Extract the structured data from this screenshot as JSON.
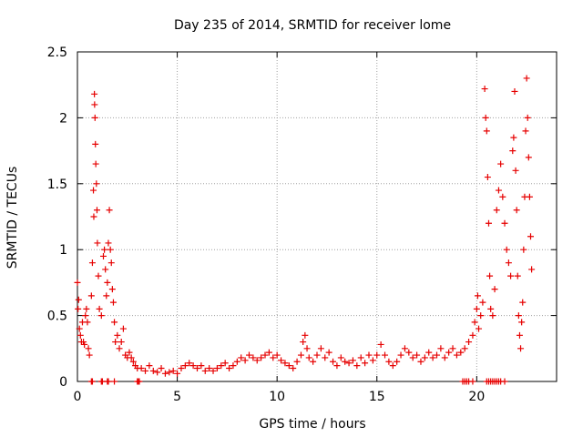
{
  "chart_data": {
    "type": "scatter",
    "title": "Day 235 of 2014, SRMTID for receiver lome",
    "xlabel": "GPS time / hours",
    "ylabel": "SRMTID / TECUs",
    "xlim": [
      0,
      24
    ],
    "ylim": [
      0,
      2.5
    ],
    "grid": true,
    "marker": "plus",
    "color": "#e60000",
    "x_ticks": [
      0,
      5,
      10,
      15,
      20
    ],
    "x_tick_labels": [
      "0",
      "5",
      "10",
      "15",
      "20"
    ],
    "y_ticks": [
      0,
      0.5,
      1,
      1.5,
      2,
      2.5
    ],
    "y_tick_labels": [
      "0",
      "0.5",
      "1",
      "1.5",
      "2",
      "2.5"
    ],
    "series": [
      {
        "name": "SRMTID",
        "points": [
          [
            0.0,
            0.75
          ],
          [
            0.03,
            0.55
          ],
          [
            0.06,
            0.62
          ],
          [
            0.1,
            0.4
          ],
          [
            0.15,
            0.35
          ],
          [
            0.2,
            0.3
          ],
          [
            0.25,
            0.45
          ],
          [
            0.3,
            0.3
          ],
          [
            0.35,
            0.28
          ],
          [
            0.4,
            0.5
          ],
          [
            0.45,
            0.55
          ],
          [
            0.5,
            0.45
          ],
          [
            0.55,
            0.25
          ],
          [
            0.6,
            0.2
          ],
          [
            0.7,
            0.65
          ],
          [
            0.75,
            0.9
          ],
          [
            0.8,
            1.45
          ],
          [
            0.82,
            1.25
          ],
          [
            0.85,
            2.18
          ],
          [
            0.86,
            2.1
          ],
          [
            0.88,
            2.0
          ],
          [
            0.9,
            1.8
          ],
          [
            0.92,
            1.65
          ],
          [
            0.95,
            1.5
          ],
          [
            0.98,
            1.3
          ],
          [
            1.0,
            1.05
          ],
          [
            1.05,
            0.8
          ],
          [
            1.1,
            0.55
          ],
          [
            1.2,
            0.5
          ],
          [
            1.3,
            0.95
          ],
          [
            1.35,
            1.0
          ],
          [
            1.4,
            0.85
          ],
          [
            1.45,
            0.65
          ],
          [
            1.5,
            0.75
          ],
          [
            1.55,
            1.05
          ],
          [
            1.6,
            1.3
          ],
          [
            1.65,
            1.0
          ],
          [
            1.7,
            0.9
          ],
          [
            1.75,
            0.7
          ],
          [
            1.8,
            0.6
          ],
          [
            1.85,
            0.45
          ],
          [
            1.9,
            0.3
          ],
          [
            2.0,
            0.35
          ],
          [
            2.1,
            0.25
          ],
          [
            2.2,
            0.3
          ],
          [
            2.3,
            0.4
          ],
          [
            2.4,
            0.2
          ],
          [
            2.5,
            0.18
          ],
          [
            2.6,
            0.22
          ],
          [
            2.7,
            0.18
          ],
          [
            2.8,
            0.15
          ],
          [
            2.9,
            0.12
          ],
          [
            3.0,
            0.1
          ],
          [
            3.2,
            0.1
          ],
          [
            3.4,
            0.08
          ],
          [
            3.6,
            0.12
          ],
          [
            3.8,
            0.08
          ],
          [
            4.0,
            0.07
          ],
          [
            4.2,
            0.1
          ],
          [
            4.4,
            0.06
          ],
          [
            4.6,
            0.07
          ],
          [
            4.8,
            0.08
          ],
          [
            5.0,
            0.06
          ],
          [
            5.2,
            0.1
          ],
          [
            5.4,
            0.12
          ],
          [
            5.6,
            0.14
          ],
          [
            5.8,
            0.12
          ],
          [
            6.0,
            0.1
          ],
          [
            6.2,
            0.12
          ],
          [
            6.4,
            0.08
          ],
          [
            6.6,
            0.1
          ],
          [
            6.8,
            0.08
          ],
          [
            7.0,
            0.1
          ],
          [
            7.2,
            0.12
          ],
          [
            7.4,
            0.14
          ],
          [
            7.6,
            0.1
          ],
          [
            7.8,
            0.12
          ],
          [
            8.0,
            0.15
          ],
          [
            8.2,
            0.18
          ],
          [
            8.4,
            0.16
          ],
          [
            8.6,
            0.2
          ],
          [
            8.8,
            0.18
          ],
          [
            9.0,
            0.16
          ],
          [
            9.2,
            0.18
          ],
          [
            9.4,
            0.2
          ],
          [
            9.6,
            0.22
          ],
          [
            9.8,
            0.18
          ],
          [
            10.0,
            0.2
          ],
          [
            10.2,
            0.16
          ],
          [
            10.4,
            0.14
          ],
          [
            10.6,
            0.12
          ],
          [
            10.8,
            0.1
          ],
          [
            11.0,
            0.15
          ],
          [
            11.2,
            0.2
          ],
          [
            11.3,
            0.3
          ],
          [
            11.4,
            0.35
          ],
          [
            11.5,
            0.25
          ],
          [
            11.6,
            0.18
          ],
          [
            11.8,
            0.15
          ],
          [
            12.0,
            0.2
          ],
          [
            12.2,
            0.25
          ],
          [
            12.4,
            0.18
          ],
          [
            12.6,
            0.22
          ],
          [
            12.8,
            0.15
          ],
          [
            13.0,
            0.12
          ],
          [
            13.2,
            0.18
          ],
          [
            13.4,
            0.15
          ],
          [
            13.6,
            0.14
          ],
          [
            13.8,
            0.16
          ],
          [
            14.0,
            0.12
          ],
          [
            14.2,
            0.18
          ],
          [
            14.4,
            0.14
          ],
          [
            14.6,
            0.2
          ],
          [
            14.8,
            0.16
          ],
          [
            15.0,
            0.2
          ],
          [
            15.2,
            0.28
          ],
          [
            15.4,
            0.2
          ],
          [
            15.6,
            0.15
          ],
          [
            15.8,
            0.12
          ],
          [
            16.0,
            0.15
          ],
          [
            16.2,
            0.2
          ],
          [
            16.4,
            0.25
          ],
          [
            16.6,
            0.22
          ],
          [
            16.8,
            0.18
          ],
          [
            17.0,
            0.2
          ],
          [
            17.2,
            0.15
          ],
          [
            17.4,
            0.18
          ],
          [
            17.6,
            0.22
          ],
          [
            17.8,
            0.18
          ],
          [
            18.0,
            0.2
          ],
          [
            18.2,
            0.25
          ],
          [
            18.4,
            0.18
          ],
          [
            18.6,
            0.22
          ],
          [
            18.8,
            0.25
          ],
          [
            19.0,
            0.2
          ],
          [
            19.2,
            0.22
          ],
          [
            19.4,
            0.25
          ],
          [
            19.6,
            0.3
          ],
          [
            19.8,
            0.35
          ],
          [
            19.9,
            0.45
          ],
          [
            20.0,
            0.55
          ],
          [
            20.05,
            0.65
          ],
          [
            20.1,
            0.4
          ],
          [
            20.2,
            0.5
          ],
          [
            20.3,
            0.6
          ],
          [
            20.4,
            2.22
          ],
          [
            20.45,
            2.0
          ],
          [
            20.5,
            1.9
          ],
          [
            20.55,
            1.55
          ],
          [
            20.6,
            1.2
          ],
          [
            20.65,
            0.8
          ],
          [
            20.7,
            0.55
          ],
          [
            20.8,
            0.5
          ],
          [
            20.9,
            0.7
          ],
          [
            21.0,
            1.3
          ],
          [
            21.1,
            1.45
          ],
          [
            21.2,
            1.65
          ],
          [
            21.3,
            1.4
          ],
          [
            21.4,
            1.2
          ],
          [
            21.5,
            1.0
          ],
          [
            21.6,
            0.9
          ],
          [
            21.7,
            0.8
          ],
          [
            21.8,
            1.75
          ],
          [
            21.85,
            1.85
          ],
          [
            21.9,
            2.2
          ],
          [
            21.95,
            1.6
          ],
          [
            22.0,
            1.3
          ],
          [
            22.05,
            0.8
          ],
          [
            22.1,
            0.5
          ],
          [
            22.15,
            0.35
          ],
          [
            22.2,
            0.25
          ],
          [
            22.25,
            0.45
          ],
          [
            22.3,
            0.6
          ],
          [
            22.35,
            1.0
          ],
          [
            22.4,
            1.4
          ],
          [
            22.45,
            1.9
          ],
          [
            22.5,
            2.3
          ],
          [
            22.55,
            2.0
          ],
          [
            22.6,
            1.7
          ],
          [
            22.65,
            1.4
          ],
          [
            22.7,
            1.1
          ],
          [
            22.75,
            0.85
          ]
        ],
        "zero_points": [
          [
            0.7,
            0
          ],
          [
            0.75,
            0
          ],
          [
            1.2,
            0
          ],
          [
            1.25,
            0
          ],
          [
            1.5,
            0
          ],
          [
            1.55,
            0
          ],
          [
            1.85,
            0
          ],
          [
            3.0,
            0
          ],
          [
            3.05,
            0
          ],
          [
            3.1,
            0
          ],
          [
            19.3,
            0
          ],
          [
            19.4,
            0
          ],
          [
            19.5,
            0
          ],
          [
            19.6,
            0
          ],
          [
            19.8,
            0
          ],
          [
            20.5,
            0
          ],
          [
            20.6,
            0
          ],
          [
            20.7,
            0
          ],
          [
            20.8,
            0
          ],
          [
            20.9,
            0
          ],
          [
            21.0,
            0
          ],
          [
            21.1,
            0
          ],
          [
            21.2,
            0
          ],
          [
            21.4,
            0
          ]
        ]
      }
    ]
  }
}
